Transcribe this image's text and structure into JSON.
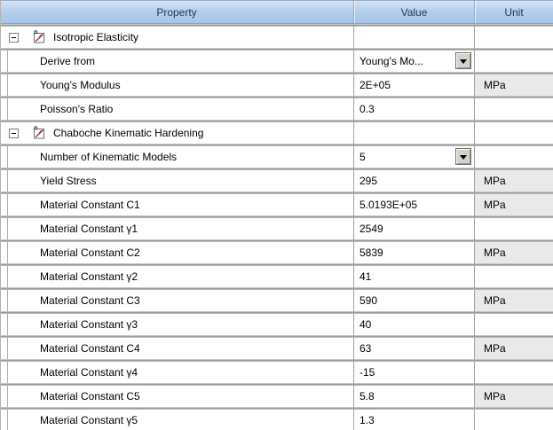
{
  "table": {
    "columns": [
      {
        "label": "Property"
      },
      {
        "label": "Value"
      },
      {
        "label": "Unit"
      }
    ],
    "rows": [
      {
        "type": "section",
        "label": "Isotropic Elasticity",
        "value": "",
        "unit": "",
        "dropdown": false,
        "collapsed": false
      },
      {
        "type": "item",
        "label": "Derive from",
        "value": "Young's Mo...",
        "unit": "",
        "dropdown": true
      },
      {
        "type": "item",
        "label": "Young's Modulus",
        "value": "2E+05",
        "unit": "MPa",
        "dropdown": false
      },
      {
        "type": "item",
        "label": "Poisson's Ratio",
        "value": "0.3",
        "unit": "",
        "dropdown": false
      },
      {
        "type": "section",
        "label": "Chaboche Kinematic Hardening",
        "value": "",
        "unit": "",
        "dropdown": false,
        "collapsed": false
      },
      {
        "type": "item",
        "label": "Number of Kinematic Models",
        "value": "5",
        "unit": "",
        "dropdown": true
      },
      {
        "type": "item",
        "label": "Yield Stress",
        "value": "295",
        "unit": "MPa",
        "dropdown": false
      },
      {
        "type": "item",
        "label": "Material Constant C1",
        "value": "5.0193E+05",
        "unit": "MPa",
        "dropdown": false
      },
      {
        "type": "item",
        "label": "Material Constant γ1",
        "value": "2549",
        "unit": "",
        "dropdown": false
      },
      {
        "type": "item",
        "label": "Material Constant C2",
        "value": "5839",
        "unit": "MPa",
        "dropdown": false
      },
      {
        "type": "item",
        "label": "Material Constant γ2",
        "value": "41",
        "unit": "",
        "dropdown": false
      },
      {
        "type": "item",
        "label": "Material Constant C3",
        "value": "590",
        "unit": "MPa",
        "dropdown": false
      },
      {
        "type": "item",
        "label": "Material Constant γ3",
        "value": "40",
        "unit": "",
        "dropdown": false
      },
      {
        "type": "item",
        "label": "Material Constant C4",
        "value": "63",
        "unit": "MPa",
        "dropdown": false
      },
      {
        "type": "item",
        "label": "Material Constant γ4",
        "value": "-15",
        "unit": "",
        "dropdown": false
      },
      {
        "type": "item",
        "label": "Material Constant C5",
        "value": "5.8",
        "unit": "MPa",
        "dropdown": false
      },
      {
        "type": "item",
        "label": "Material Constant γ5",
        "value": "1.3",
        "unit": "",
        "dropdown": false
      }
    ]
  },
  "icons": {
    "section_collapse": "minus-box-icon",
    "section_glyph": "material-model-chart-icon",
    "value_dropdown": "dropdown-arrow-icon"
  },
  "colors": {
    "header_bg_top": "#d4e3f6",
    "header_bg_bottom": "#a7c5e7",
    "header_text": "#1b3a5f",
    "row_bg": "#ffffff",
    "separator": "#8f8f8f",
    "grid_line": "#a3a3a3",
    "unit_cell_bg": "#e9e9e9",
    "combo_button_bg": "#d6d2c9",
    "icon_curve_red": "#cc2222",
    "icon_line_blue": "#3a62a8"
  }
}
